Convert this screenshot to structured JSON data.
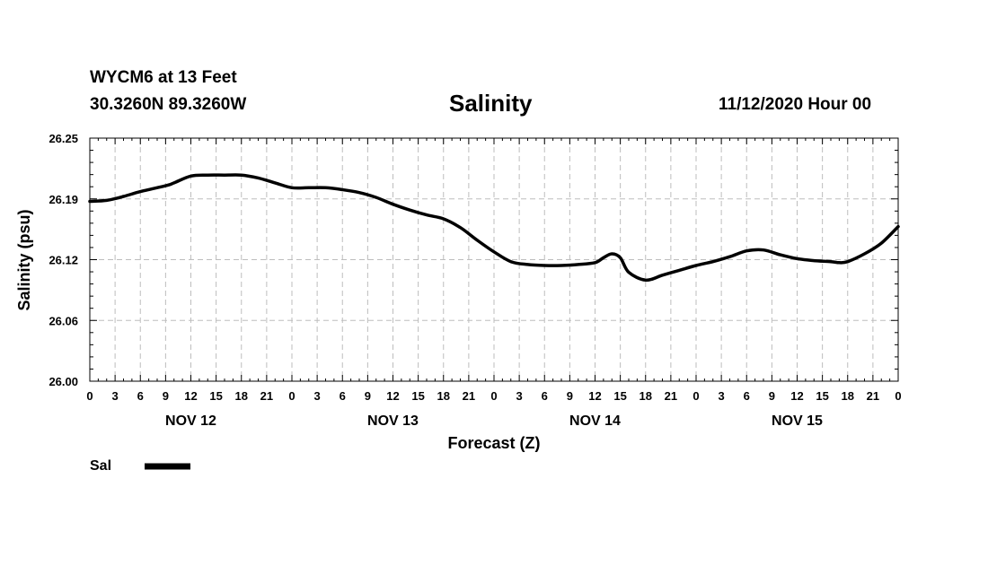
{
  "header": {
    "station": "WYCM6 at 13 Feet",
    "location": "30.3260N 89.3260W",
    "timestamp": "11/12/2020 Hour 00"
  },
  "chart_data": {
    "type": "line",
    "title": "Salinity",
    "xlabel": "Forecast (Z)",
    "ylabel": "Salinity (psu)",
    "ylim": [
      26.0,
      26.25
    ],
    "xlim": [
      0,
      96
    ],
    "y_ticks": [
      "26.25",
      "26.19",
      "26.12",
      "26.06",
      "26.00"
    ],
    "y_tick_values": [
      26.25,
      26.1875,
      26.125,
      26.0625,
      26.0
    ],
    "x_tick_labels": [
      "0",
      "3",
      "6",
      "9",
      "12",
      "15",
      "18",
      "21",
      "0",
      "3",
      "6",
      "9",
      "12",
      "15",
      "18",
      "21",
      "0",
      "3",
      "6",
      "9",
      "12",
      "15",
      "18",
      "21",
      "0",
      "3",
      "6",
      "9",
      "12",
      "15",
      "18",
      "21",
      "0"
    ],
    "x_tick_hours": [
      0,
      3,
      6,
      9,
      12,
      15,
      18,
      21,
      24,
      27,
      30,
      33,
      36,
      39,
      42,
      45,
      48,
      51,
      54,
      57,
      60,
      63,
      66,
      69,
      72,
      75,
      78,
      81,
      84,
      87,
      90,
      93,
      96
    ],
    "day_labels": [
      {
        "label": "NOV 12",
        "hour": 12
      },
      {
        "label": "NOV 13",
        "hour": 36
      },
      {
        "label": "NOV 14",
        "hour": 60
      },
      {
        "label": "NOV 15",
        "hour": 84
      }
    ],
    "grid": true,
    "legend_position": "bottom-left",
    "series": [
      {
        "name": "Sal",
        "color": "#000000",
        "x": [
          0,
          2,
          4,
          6,
          9,
          10,
          12,
          14,
          16,
          18,
          20,
          22,
          24,
          26,
          28,
          30,
          32,
          34,
          36,
          38,
          40,
          42,
          44,
          46,
          48,
          50,
          52,
          54,
          56,
          58,
          60,
          61,
          62,
          63,
          64,
          66,
          68,
          70,
          72,
          74,
          76,
          78,
          80,
          82,
          84,
          86,
          88,
          89,
          90,
          92,
          94,
          96
        ],
        "y": [
          26.185,
          26.186,
          26.19,
          26.195,
          26.201,
          26.204,
          26.211,
          26.212,
          26.212,
          26.212,
          26.209,
          26.204,
          26.199,
          26.199,
          26.199,
          26.197,
          26.194,
          26.189,
          26.182,
          26.176,
          26.171,
          26.167,
          26.158,
          26.145,
          26.133,
          26.123,
          26.12,
          26.119,
          26.119,
          26.12,
          26.122,
          26.127,
          26.131,
          26.127,
          26.112,
          26.104,
          26.109,
          26.114,
          26.119,
          26.123,
          26.128,
          26.134,
          26.135,
          26.13,
          26.126,
          26.124,
          26.123,
          26.122,
          26.123,
          26.131,
          26.142,
          26.159
        ]
      }
    ]
  }
}
